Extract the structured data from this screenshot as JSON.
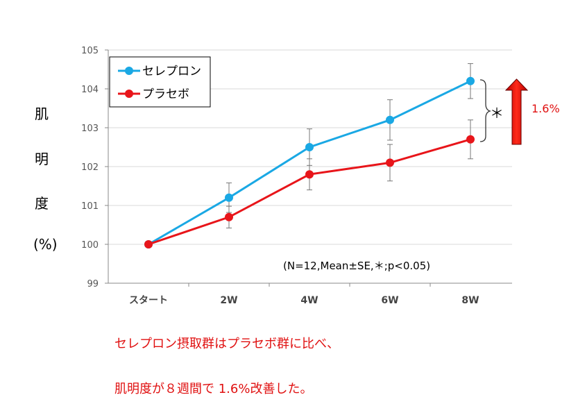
{
  "chart_data": {
    "type": "line",
    "categories": [
      "スタート",
      "2W",
      "4W",
      "6W",
      "8W"
    ],
    "series": [
      {
        "name": "セレプロン",
        "color": "#1aa8e4",
        "values": [
          100.0,
          101.2,
          102.5,
          103.2,
          104.2
        ],
        "errors": [
          0.0,
          0.38,
          0.47,
          0.52,
          0.45
        ]
      },
      {
        "name": "プラセボ",
        "color": "#e8151a",
        "values": [
          100.0,
          100.7,
          101.8,
          102.1,
          102.7
        ],
        "errors": [
          0.0,
          0.28,
          0.4,
          0.47,
          0.5
        ]
      }
    ],
    "ylim": [
      99,
      105
    ],
    "yticks": [
      "99",
      "100",
      "101",
      "102",
      "103",
      "104",
      "105"
    ],
    "ylabel_chars": [
      "肌",
      "明",
      "度",
      "(%)"
    ],
    "annotation": "(N=12,Mean±SE,＊;p<0.05)",
    "significance": "＊",
    "increase_label": "1.6%",
    "legend_position": "top-left",
    "grid": true
  },
  "captions": [
    "セレプロン摂取群はプラセボ群に比べ、",
    "肌明度が８週間で 1.6%改善した。"
  ]
}
